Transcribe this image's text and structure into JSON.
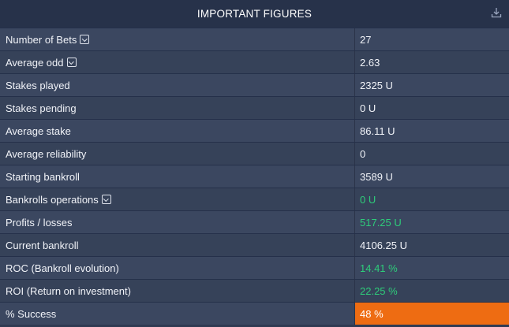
{
  "header": {
    "title": "IMPORTANT FIGURES",
    "download_icon": "download-icon"
  },
  "colors": {
    "positive": "#2ecc7a",
    "highlight": "#ee6c12"
  },
  "rows": [
    {
      "label": "Number of Bets",
      "value": "27",
      "expandable": true
    },
    {
      "label": "Average odd",
      "value": "2.63",
      "expandable": true
    },
    {
      "label": "Stakes played",
      "value": "2325 U"
    },
    {
      "label": "Stakes pending",
      "value": "0 U"
    },
    {
      "label": "Average stake",
      "value": "86.11 U"
    },
    {
      "label": "Average reliability",
      "value": "0"
    },
    {
      "label": "Starting bankroll",
      "value": "3589 U"
    },
    {
      "label": "Bankrolls operations",
      "value": "0 U",
      "expandable": true,
      "style": "green"
    },
    {
      "label": "Profits / losses",
      "value": "517.25 U",
      "style": "green"
    },
    {
      "label": "Current bankroll",
      "value": "4106.25 U"
    },
    {
      "label": "ROC (Bankroll evolution)",
      "value": "14.41 %",
      "style": "green"
    },
    {
      "label": "ROI (Return on investment)",
      "value": "22.25 %",
      "style": "green"
    },
    {
      "label": "% Success",
      "value": "48 %",
      "style": "orange"
    }
  ]
}
